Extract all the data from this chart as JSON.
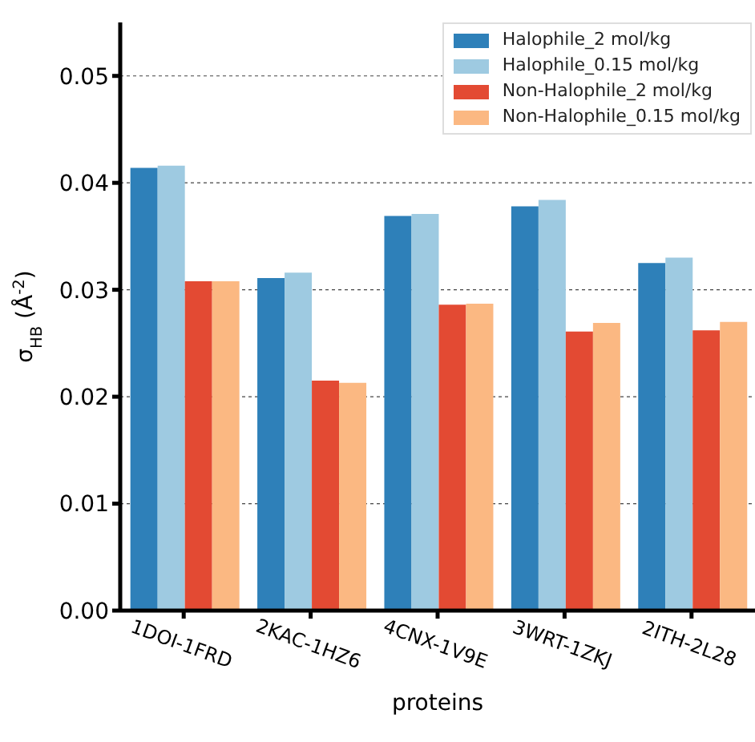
{
  "chart_data": {
    "type": "bar",
    "categories": [
      "1DOI-1FRD",
      "2KAC-1HZ6",
      "4CNX-1V9E",
      "3WRT-1ZKJ",
      "2ITH-2L28"
    ],
    "series": [
      {
        "name": "Halophile_2 mol/kg",
        "color": "#2e80b9",
        "values": [
          0.0414,
          0.0311,
          0.0369,
          0.0378,
          0.0325
        ]
      },
      {
        "name": "Halophile_0.15 mol/kg",
        "color": "#9ecae1",
        "values": [
          0.0416,
          0.0316,
          0.0371,
          0.0384,
          0.033
        ]
      },
      {
        "name": "Non-Halophile_2 mol/kg",
        "color": "#e34a33",
        "values": [
          0.0308,
          0.0215,
          0.0286,
          0.0261,
          0.0262
        ]
      },
      {
        "name": "Non-Halophile_0.15 mol/kg",
        "color": "#fbb882",
        "values": [
          0.0308,
          0.0213,
          0.0287,
          0.0269,
          0.027
        ]
      }
    ],
    "xlabel": "proteins",
    "ylabel": "σ$_{HB}$ (Å$^{-2}$)",
    "ylim": [
      0,
      0.055
    ],
    "yticks": [
      {
        "value": 0,
        "label": "0.00"
      },
      {
        "value": 0.01,
        "label": "0.01"
      },
      {
        "value": 0.02,
        "label": "0.02"
      },
      {
        "value": 0.03,
        "label": "0.03"
      },
      {
        "value": 0.04,
        "label": "0.04"
      },
      {
        "value": 0.05,
        "label": "0.05"
      }
    ],
    "grid": "y",
    "legend": "top right"
  }
}
